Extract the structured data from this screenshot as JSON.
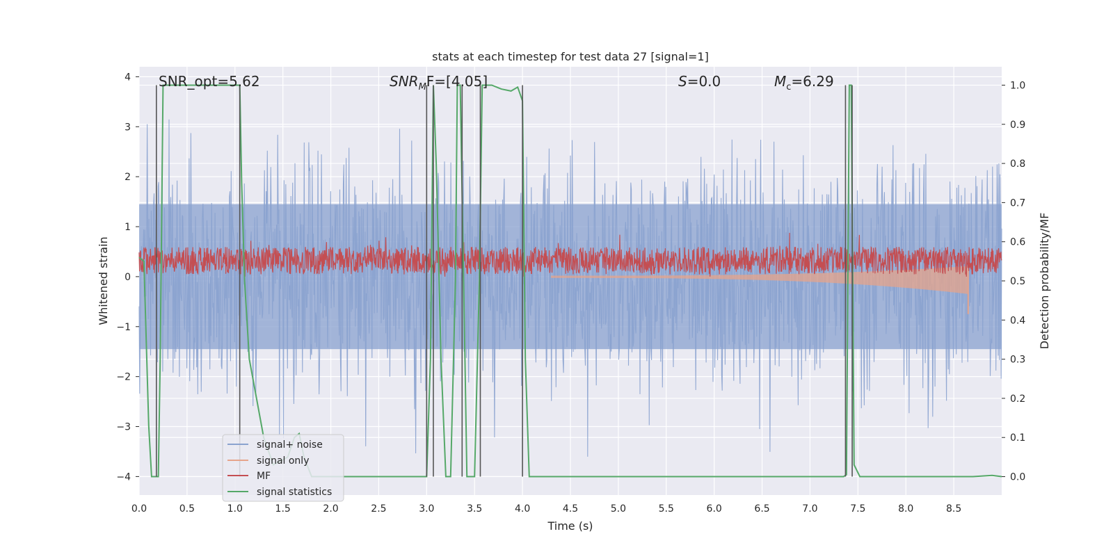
{
  "chart_data": {
    "type": "line",
    "title": "stats at each timestep for test data 27 [signal=1]",
    "xlabel": "Time (s)",
    "ylabel_left": "Whitened strain",
    "ylabel_right": "Detection probability/MF",
    "xlim": [
      0.0,
      9.0
    ],
    "ylim_left": [
      -4.37,
      4.2
    ],
    "ylim_right": [
      -0.047,
      1.047
    ],
    "x_ticks": [
      "0.0",
      "0.5",
      "1.0",
      "1.5",
      "2.0",
      "2.5",
      "3.0",
      "3.5",
      "4.0",
      "4.5",
      "5.0",
      "5.5",
      "6.0",
      "6.5",
      "7.0",
      "7.5",
      "8.0",
      "8.5"
    ],
    "y_ticks_left": [
      "4",
      "3",
      "2",
      "1",
      "0",
      "−1",
      "−2",
      "−3",
      "−4"
    ],
    "y_ticks_right": [
      "1.0",
      "0.9",
      "0.8",
      "0.7",
      "0.6",
      "0.5",
      "0.4",
      "0.3",
      "0.2",
      "0.1",
      "0.0"
    ],
    "grid": true,
    "legend_position": "lower-left",
    "annotations": {
      "snr_opt": "SNR_opt=5.62",
      "snr_mf_main": "SNR",
      "snr_mf_sub": "M",
      "snr_mf_rest": "F=[4.05]",
      "s_italic": "S",
      "s_rest": "=0.0",
      "mc_main": "M",
      "mc_sub": "c",
      "mc_rest": "=6.29"
    },
    "series": [
      {
        "name": "signal+ noise",
        "color": "#8aa2cf",
        "axis": "left",
        "description_amplitude": "noise roughly between −3.5 and 3.5"
      },
      {
        "name": "signal only",
        "color": "#e6a48b",
        "axis": "left",
        "start": 4.3,
        "end": 8.65,
        "min_value": -0.75
      },
      {
        "name": "MF",
        "color": "#c44e52",
        "axis": "left"
      },
      {
        "name": "signal statistics",
        "color": "#55a868",
        "axis": "right",
        "x": [
          0.0,
          0.05,
          0.1,
          0.13,
          0.17,
          0.2,
          0.22,
          0.25,
          0.3,
          0.5,
          1.0,
          1.05,
          1.07,
          1.1,
          1.15,
          1.3,
          1.4,
          1.55,
          1.62,
          1.67,
          1.72,
          1.8,
          2.0,
          2.5,
          3.0,
          3.04,
          3.07,
          3.1,
          3.15,
          3.2,
          3.25,
          3.3,
          3.32,
          3.35,
          3.4,
          3.42,
          3.45,
          3.5,
          3.55,
          3.58,
          3.62,
          3.68,
          3.78,
          3.88,
          3.95,
          4.0,
          4.03,
          4.07,
          4.1,
          4.2,
          5.0,
          6.0,
          7.0,
          7.35,
          7.38,
          7.41,
          7.43,
          7.46,
          7.52,
          7.6,
          8.0,
          8.5,
          8.7,
          8.9,
          9.0
        ],
        "y": [
          0.56,
          0.55,
          0.13,
          0.0,
          0.0,
          0.0,
          0.3,
          1.0,
          1.0,
          1.0,
          1.0,
          1.0,
          0.75,
          0.5,
          0.3,
          0.1,
          0.03,
          0.05,
          0.1,
          0.11,
          0.05,
          0.0,
          0.0,
          0.0,
          0.0,
          0.3,
          1.0,
          0.8,
          0.3,
          0.0,
          0.0,
          0.5,
          1.0,
          1.0,
          0.3,
          0.0,
          0.0,
          0.0,
          0.5,
          1.0,
          1.0,
          1.0,
          0.99,
          0.985,
          0.995,
          0.96,
          0.3,
          0.0,
          0.0,
          0.0,
          0.0,
          0.0,
          0.0,
          0.0,
          0.005,
          1.0,
          1.0,
          0.03,
          0.0,
          0.0,
          0.0,
          0.0,
          0.0,
          0.003,
          0.0
        ]
      },
      {
        "name": "vertical markers",
        "color": "#555555",
        "axis": "right",
        "x": [
          0.18,
          1.05,
          3.0,
          3.07,
          3.37,
          3.56,
          4.0,
          7.37,
          7.44
        ],
        "y_top": 1.0
      }
    ]
  },
  "legend": [
    {
      "label": "signal+ noise",
      "color": "#8aa2cf"
    },
    {
      "label": "signal only",
      "color": "#e6a48b"
    },
    {
      "label": "MF",
      "color": "#c44e52"
    },
    {
      "label": "signal statistics",
      "color": "#55a868"
    }
  ]
}
